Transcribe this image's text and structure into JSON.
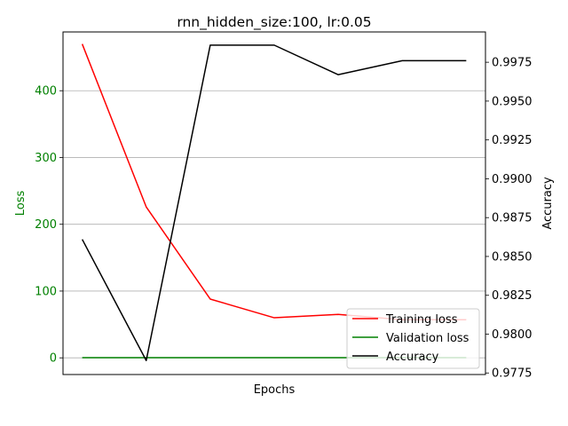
{
  "chart_data": {
    "type": "line",
    "title": "rnn_hidden_size:100, lr:0.05",
    "xlabel": "Epochs",
    "ylabel_left": "Loss",
    "ylabel_right": "Accuracy",
    "x": [
      0,
      1,
      2,
      3,
      4,
      5,
      6
    ],
    "xlim": [
      -0.3,
      6.3
    ],
    "ylim_left": [
      -25,
      488
    ],
    "yticks_left": [
      0,
      100,
      200,
      300,
      400
    ],
    "ylim_right": [
      0.9774,
      0.99945
    ],
    "yticks_right": [
      0.9775,
      0.98,
      0.9825,
      0.985,
      0.9875,
      0.99,
      0.9925,
      0.995,
      0.9975
    ],
    "grid": "horizontal",
    "legend_position": "lower-right",
    "left_axis_color": "#008000",
    "series": [
      {
        "name": "Training loss",
        "axis": "left",
        "color": "#ff0000",
        "values": [
          470,
          226,
          88,
          60,
          65,
          57,
          57
        ]
      },
      {
        "name": "Validation loss",
        "axis": "left",
        "color": "#008000",
        "values": [
          0.3,
          0.3,
          0.3,
          0.3,
          0.3,
          0.3,
          0.3
        ]
      },
      {
        "name": "Accuracy",
        "axis": "right",
        "color": "#000000",
        "values": [
          0.9861,
          0.9783,
          0.9986,
          0.9986,
          0.9967,
          0.9976,
          0.9976
        ]
      }
    ]
  }
}
